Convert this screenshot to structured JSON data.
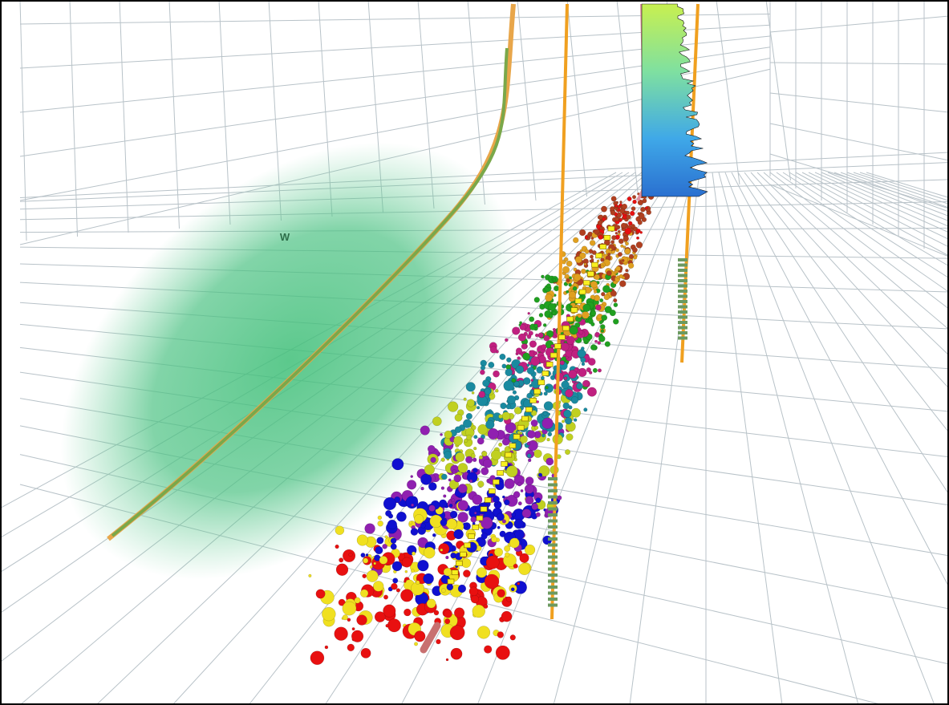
{
  "scene": {
    "label": "W"
  }
}
